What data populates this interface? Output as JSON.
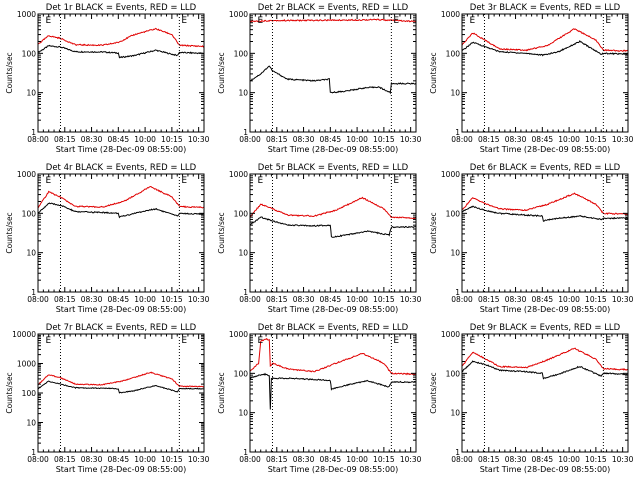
{
  "figure": {
    "ylabel": "Counts/sec",
    "xlabel": "Start Time (28-Dec-09 08:55:00)",
    "xticks": [
      "08:00",
      "08:15",
      "08:30",
      "08:45",
      "10:00",
      "10:15",
      "10:30"
    ],
    "yticks": [
      "1",
      "10",
      "100",
      "1000"
    ],
    "yticks_10k": [
      "1",
      "10",
      "100",
      "1000",
      "10000"
    ],
    "marker": "E",
    "colors": {
      "events": "#000000",
      "lld": "#e00000",
      "frame": "#000000"
    }
  },
  "chart_data": [
    {
      "type": "line",
      "title": "Det 1r BLACK = Events, RED = LLD",
      "scale": "log",
      "ylim": [
        1,
        1000
      ],
      "xrange_min": [
        0,
        155
      ],
      "dotted_x_min": [
        21,
        132
      ],
      "series": [
        {
          "name": "Events",
          "color": "#000000",
          "points": [
            [
              0,
              105
            ],
            [
              10,
              155
            ],
            [
              21,
              145
            ],
            [
              35,
              110
            ],
            [
              60,
              108
            ],
            [
              75,
              102
            ],
            [
              76,
              78
            ],
            [
              90,
              88
            ],
            [
              110,
              120
            ],
            [
              130,
              88
            ],
            [
              132,
              105
            ],
            [
              155,
              100
            ]
          ]
        },
        {
          "name": "LLD",
          "color": "#e00000",
          "points": [
            [
              0,
              170
            ],
            [
              10,
              280
            ],
            [
              21,
              240
            ],
            [
              35,
              165
            ],
            [
              60,
              160
            ],
            [
              75,
              190
            ],
            [
              90,
              300
            ],
            [
              110,
              420
            ],
            [
              125,
              300
            ],
            [
              132,
              160
            ],
            [
              155,
              150
            ]
          ]
        }
      ]
    },
    {
      "type": "line",
      "title": "Det 2r BLACK = Events, RED = LLD",
      "scale": "log",
      "ylim": [
        1,
        1000
      ],
      "xrange_min": [
        0,
        155
      ],
      "dotted_x_min": [
        21,
        132
      ],
      "series": [
        {
          "name": "Events",
          "color": "#000000",
          "points": [
            [
              0,
              20
            ],
            [
              10,
              30
            ],
            [
              18,
              48
            ],
            [
              21,
              36
            ],
            [
              35,
              22
            ],
            [
              60,
              20
            ],
            [
              74,
              22
            ],
            [
              75,
              10
            ],
            [
              90,
              11
            ],
            [
              105,
              13
            ],
            [
              120,
              14
            ],
            [
              131,
              10
            ],
            [
              132,
              17
            ],
            [
              155,
              17
            ]
          ]
        },
        {
          "name": "LLD",
          "color": "#e00000",
          "points": [
            [
              0,
              650
            ],
            [
              21,
              680
            ],
            [
              60,
              690
            ],
            [
              90,
              700
            ],
            [
              120,
              720
            ],
            [
              132,
              690
            ],
            [
              155,
              640
            ]
          ]
        }
      ]
    },
    {
      "type": "line",
      "title": "Det 3r BLACK = Events, RED = LLD",
      "scale": "log",
      "ylim": [
        1,
        1000
      ],
      "xrange_min": [
        0,
        155
      ],
      "dotted_x_min": [
        21,
        132
      ],
      "series": [
        {
          "name": "Events",
          "color": "#000000",
          "points": [
            [
              0,
              115
            ],
            [
              10,
              190
            ],
            [
              21,
              150
            ],
            [
              35,
              110
            ],
            [
              60,
              100
            ],
            [
              76,
              90
            ],
            [
              90,
              110
            ],
            [
              110,
              200
            ],
            [
              130,
              95
            ],
            [
              132,
              100
            ],
            [
              155,
              95
            ]
          ]
        },
        {
          "name": "LLD",
          "color": "#e00000",
          "points": [
            [
              0,
              160
            ],
            [
              10,
              330
            ],
            [
              21,
              220
            ],
            [
              35,
              130
            ],
            [
              60,
              120
            ],
            [
              80,
              160
            ],
            [
              105,
              420
            ],
            [
              125,
              220
            ],
            [
              132,
              120
            ],
            [
              155,
              115
            ]
          ]
        }
      ]
    },
    {
      "type": "line",
      "title": "Det 4r BLACK = Events, RED = LLD",
      "scale": "log",
      "ylim": [
        1,
        1000
      ],
      "xrange_min": [
        0,
        155
      ],
      "dotted_x_min": [
        21,
        132
      ],
      "series": [
        {
          "name": "Events",
          "color": "#000000",
          "points": [
            [
              0,
              100
            ],
            [
              10,
              180
            ],
            [
              21,
              160
            ],
            [
              35,
              110
            ],
            [
              60,
              105
            ],
            [
              75,
              100
            ],
            [
              76,
              80
            ],
            [
              90,
              100
            ],
            [
              110,
              130
            ],
            [
              130,
              85
            ],
            [
              132,
              100
            ],
            [
              155,
              95
            ]
          ]
        },
        {
          "name": "LLD",
          "color": "#e00000",
          "points": [
            [
              0,
              140
            ],
            [
              10,
              350
            ],
            [
              21,
              260
            ],
            [
              35,
              150
            ],
            [
              60,
              145
            ],
            [
              80,
              200
            ],
            [
              105,
              480
            ],
            [
              125,
              260
            ],
            [
              132,
              150
            ],
            [
              155,
              140
            ]
          ]
        }
      ]
    },
    {
      "type": "line",
      "title": "Det 5r BLACK = Events, RED = LLD",
      "scale": "log",
      "ylim": [
        1,
        1000
      ],
      "xrange_min": [
        0,
        155
      ],
      "dotted_x_min": [
        21,
        132
      ],
      "series": [
        {
          "name": "Events",
          "color": "#000000",
          "points": [
            [
              0,
              50
            ],
            [
              10,
              80
            ],
            [
              21,
              65
            ],
            [
              35,
              50
            ],
            [
              60,
              48
            ],
            [
              75,
              50
            ],
            [
              76,
              25
            ],
            [
              90,
              28
            ],
            [
              110,
              35
            ],
            [
              130,
              28
            ],
            [
              132,
              45
            ],
            [
              155,
              45
            ]
          ]
        },
        {
          "name": "LLD",
          "color": "#e00000",
          "points": [
            [
              0,
              80
            ],
            [
              10,
              170
            ],
            [
              21,
              130
            ],
            [
              35,
              90
            ],
            [
              60,
              85
            ],
            [
              80,
              120
            ],
            [
              105,
              250
            ],
            [
              125,
              130
            ],
            [
              132,
              80
            ],
            [
              155,
              75
            ]
          ]
        }
      ]
    },
    {
      "type": "line",
      "title": "Det 6r BLACK = Events, RED = LLD",
      "scale": "log",
      "ylim": [
        1,
        1000
      ],
      "xrange_min": [
        0,
        155
      ],
      "dotted_x_min": [
        21,
        132
      ],
      "series": [
        {
          "name": "Events",
          "color": "#000000",
          "points": [
            [
              0,
              110
            ],
            [
              10,
              150
            ],
            [
              21,
              120
            ],
            [
              35,
              100
            ],
            [
              60,
              90
            ],
            [
              75,
              85
            ],
            [
              76,
              65
            ],
            [
              90,
              75
            ],
            [
              110,
              85
            ],
            [
              130,
              70
            ],
            [
              132,
              75
            ],
            [
              155,
              75
            ]
          ]
        },
        {
          "name": "LLD",
          "color": "#e00000",
          "points": [
            [
              0,
              120
            ],
            [
              10,
              250
            ],
            [
              21,
              180
            ],
            [
              35,
              130
            ],
            [
              60,
              120
            ],
            [
              80,
              170
            ],
            [
              105,
              320
            ],
            [
              125,
              170
            ],
            [
              132,
              100
            ],
            [
              155,
              95
            ]
          ]
        }
      ]
    },
    {
      "type": "line",
      "title": "Det 7r BLACK = Events, RED = LLD",
      "scale": "log",
      "ylim": [
        1,
        10000
      ],
      "xrange_min": [
        0,
        155
      ],
      "dotted_x_min": [
        21,
        132
      ],
      "series": [
        {
          "name": "Events",
          "color": "#000000",
          "points": [
            [
              0,
              140
            ],
            [
              10,
              250
            ],
            [
              21,
              200
            ],
            [
              35,
              150
            ],
            [
              60,
              145
            ],
            [
              75,
              140
            ],
            [
              76,
              100
            ],
            [
              90,
              120
            ],
            [
              110,
              180
            ],
            [
              130,
              110
            ],
            [
              132,
              140
            ],
            [
              155,
              140
            ]
          ]
        },
        {
          "name": "LLD",
          "color": "#e00000",
          "points": [
            [
              0,
              190
            ],
            [
              10,
              420
            ],
            [
              21,
              330
            ],
            [
              35,
              200
            ],
            [
              60,
              190
            ],
            [
              80,
              260
            ],
            [
              105,
              500
            ],
            [
              125,
              300
            ],
            [
              132,
              170
            ],
            [
              155,
              165
            ]
          ]
        }
      ]
    },
    {
      "type": "line",
      "title": "Det 8r BLACK = Events, RED = LLD",
      "scale": "log",
      "ylim": [
        1,
        1000
      ],
      "xrange_min": [
        0,
        155
      ],
      "dotted_x_min": [
        21,
        132
      ],
      "series": [
        {
          "name": "Events",
          "color": "#000000",
          "points": [
            [
              0,
              75
            ],
            [
              8,
              90
            ],
            [
              14,
              95
            ],
            [
              18,
              88
            ],
            [
              19,
              12
            ],
            [
              20,
              75
            ],
            [
              35,
              75
            ],
            [
              60,
              70
            ],
            [
              75,
              65
            ],
            [
              76,
              40
            ],
            [
              90,
              50
            ],
            [
              110,
              65
            ],
            [
              130,
              45
            ],
            [
              132,
              60
            ],
            [
              155,
              60
            ]
          ]
        },
        {
          "name": "LLD",
          "color": "#e00000",
          "points": [
            [
              0,
              110
            ],
            [
              8,
              180
            ],
            [
              10,
              650
            ],
            [
              15,
              750
            ],
            [
              18,
              700
            ],
            [
              19,
              150
            ],
            [
              21,
              180
            ],
            [
              35,
              130
            ],
            [
              60,
              110
            ],
            [
              80,
              180
            ],
            [
              105,
              320
            ],
            [
              125,
              180
            ],
            [
              132,
              100
            ],
            [
              155,
              95
            ]
          ]
        }
      ]
    },
    {
      "type": "line",
      "title": "Det 9r BLACK = Events, RED = LLD",
      "scale": "log",
      "ylim": [
        1,
        1000
      ],
      "xrange_min": [
        0,
        155
      ],
      "dotted_x_min": [
        21,
        132
      ],
      "series": [
        {
          "name": "Events",
          "color": "#000000",
          "points": [
            [
              0,
              110
            ],
            [
              10,
              200
            ],
            [
              21,
              170
            ],
            [
              35,
              120
            ],
            [
              60,
              110
            ],
            [
              75,
              100
            ],
            [
              76,
              75
            ],
            [
              90,
              95
            ],
            [
              110,
              150
            ],
            [
              130,
              85
            ],
            [
              132,
              100
            ],
            [
              155,
              95
            ]
          ]
        },
        {
          "name": "LLD",
          "color": "#e00000",
          "points": [
            [
              0,
              150
            ],
            [
              10,
              350
            ],
            [
              21,
              240
            ],
            [
              35,
              150
            ],
            [
              60,
              140
            ],
            [
              80,
              220
            ],
            [
              105,
              430
            ],
            [
              125,
              230
            ],
            [
              132,
              130
            ],
            [
              155,
              125
            ]
          ]
        }
      ]
    }
  ]
}
